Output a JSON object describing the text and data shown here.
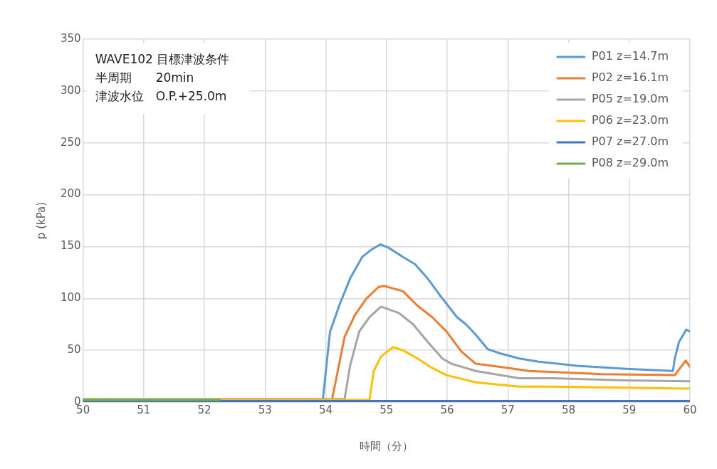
{
  "chart_data": {
    "type": "line",
    "xlabel": "時間（分）",
    "ylabel": "p (kPa)",
    "xlim": [
      50,
      60
    ],
    "xticks": [
      50,
      51,
      52,
      53,
      54,
      55,
      56,
      57,
      58,
      59,
      60
    ],
    "ylim": [
      0,
      350
    ],
    "yticks": [
      0,
      50,
      100,
      150,
      200,
      250,
      300,
      350
    ],
    "grid": true,
    "legend": "top right",
    "marker": "none",
    "line_style": "solid",
    "annotations": [
      "WAVE102 目標津波条件",
      "半周期　　20min",
      "津波水位　O.P.+25.0m"
    ],
    "series": [
      {
        "name": "P01 z=14.7m",
        "color": "#5b9bd5",
        "x": [
          50,
          53.95,
          54.07,
          54.24,
          54.4,
          54.6,
          54.75,
          54.9,
          55.03,
          55.27,
          55.47,
          55.68,
          55.92,
          56.16,
          56.31,
          56.47,
          56.67,
          56.87,
          57.19,
          57.51,
          58.14,
          58.95,
          59.72,
          59.75,
          59.82,
          59.94,
          60
        ],
        "values": [
          2,
          2,
          68,
          96,
          119,
          140,
          147,
          152,
          149,
          140,
          133,
          119,
          100,
          82,
          75,
          65,
          51,
          47,
          42,
          39,
          35,
          32,
          30,
          42,
          58,
          70,
          68
        ]
      },
      {
        "name": "P02 z=16.1m",
        "color": "#ed7d31",
        "x": [
          50,
          54.1,
          54.19,
          54.31,
          54.48,
          54.67,
          54.87,
          54.96,
          55.27,
          55.51,
          55.75,
          55.99,
          56.23,
          56.47,
          56.87,
          57.35,
          58.55,
          59.75,
          59.93,
          60
        ],
        "values": [
          2,
          2,
          28,
          63,
          84,
          100,
          111,
          112,
          107,
          93,
          82,
          68,
          49,
          37,
          34,
          30,
          27,
          26,
          40,
          34
        ]
      },
      {
        "name": "P05 z=19.0m",
        "color": "#a5a5a5",
        "x": [
          50,
          54.31,
          54.4,
          54.55,
          54.72,
          54.91,
          55.2,
          55.44,
          55.68,
          55.92,
          56.07,
          56.47,
          57.19,
          57.75,
          58.95,
          60
        ],
        "values": [
          3,
          3,
          35,
          68,
          82,
          92,
          86,
          75,
          58,
          42,
          37,
          30,
          23,
          23,
          21,
          20
        ]
      },
      {
        "name": "P06 z=23.0m",
        "color": "#ffc000",
        "x": [
          50,
          54.72,
          54.79,
          54.91,
          55.11,
          55.27,
          55.51,
          55.75,
          55.99,
          56.47,
          57.19,
          57.75,
          59.94,
          60
        ],
        "values": [
          2,
          2,
          30,
          44,
          53,
          50,
          42,
          33,
          26,
          19,
          15,
          15,
          13,
          13
        ]
      },
      {
        "name": "P07 z=27.0m",
        "color": "#4472c4",
        "x": [
          50,
          60
        ],
        "values": [
          1,
          1
        ]
      },
      {
        "name": "P08 z=29.0m",
        "color": "#70ad47",
        "x": [
          50,
          52.25
        ],
        "values": [
          2,
          2
        ]
      }
    ]
  }
}
